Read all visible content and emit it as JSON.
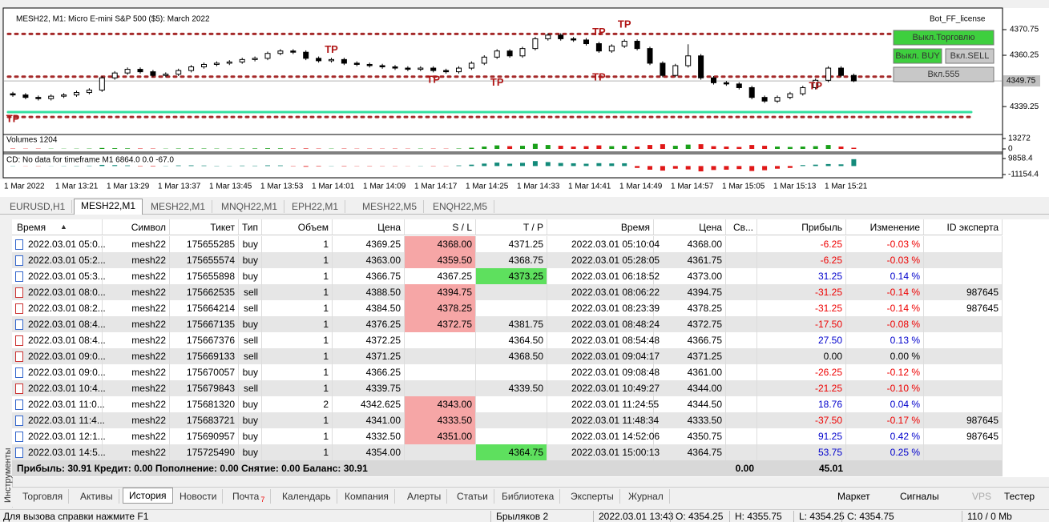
{
  "chart_data": {
    "type": "candlestick",
    "title": "MESH22, M1:  Micro E-mini S&P 500 ($5): March 2022",
    "license": "Bot_FF_license",
    "candles": [
      [
        4344.5,
        4345.25,
        4343.25,
        4344
      ],
      [
        4344,
        4344.75,
        4342.25,
        4343
      ],
      [
        4343,
        4343.75,
        4341.75,
        4342.5
      ],
      [
        4342.5,
        4344.25,
        4341.75,
        4343.5
      ],
      [
        4343.5,
        4344.75,
        4342.75,
        4344
      ],
      [
        4344,
        4345.75,
        4343.25,
        4345
      ],
      [
        4345,
        4346.75,
        4344.25,
        4346
      ],
      [
        4346,
        4351.75,
        4345.25,
        4351
      ],
      [
        4351,
        4353.75,
        4350.25,
        4353
      ],
      [
        4353,
        4355.25,
        4352.25,
        4354.5
      ],
      [
        4354.5,
        4355.25,
        4352.75,
        4353.5
      ],
      [
        4353.5,
        4354.25,
        4351.25,
        4352
      ],
      [
        4352,
        4353.25,
        4351.25,
        4352.5
      ],
      [
        4352.5,
        4354.75,
        4351.75,
        4354
      ],
      [
        4354,
        4356.25,
        4353.25,
        4355.5
      ],
      [
        4355.5,
        4357.25,
        4354.75,
        4356.5
      ],
      [
        4356.5,
        4357.75,
        4355.75,
        4357
      ],
      [
        4357,
        4358.25,
        4356.25,
        4357.5
      ],
      [
        4357.5,
        4359.25,
        4356.75,
        4358.5
      ],
      [
        4358.5,
        4359.75,
        4357.75,
        4359
      ],
      [
        4359,
        4361.75,
        4358.25,
        4361
      ],
      [
        4361,
        4362.75,
        4360.25,
        4362
      ],
      [
        4362,
        4362.75,
        4360.75,
        4361.5
      ],
      [
        4361.5,
        4362.25,
        4358.25,
        4359
      ],
      [
        4359,
        4359.75,
        4357.25,
        4358
      ],
      [
        4358,
        4359.25,
        4357.25,
        4358.5
      ],
      [
        4358.5,
        4359.25,
        4356.25,
        4357
      ],
      [
        4357,
        4357.75,
        4355.75,
        4356.5
      ],
      [
        4356.5,
        4357.25,
        4355.25,
        4356
      ],
      [
        4356,
        4356.75,
        4354.75,
        4355.5
      ],
      [
        4355.5,
        4356.25,
        4354.25,
        4355
      ],
      [
        4355,
        4355.75,
        4353.75,
        4354.5
      ],
      [
        4354.5,
        4355.75,
        4353.75,
        4355
      ],
      [
        4355,
        4355.75,
        4353.25,
        4354
      ],
      [
        4354,
        4354.75,
        4352.75,
        4353.5
      ],
      [
        4353.5,
        4355.75,
        4352.75,
        4355
      ],
      [
        4355,
        4357.75,
        4354.25,
        4357
      ],
      [
        4357,
        4360.25,
        4356.25,
        4359.5
      ],
      [
        4359.5,
        4362.75,
        4358.75,
        4362
      ],
      [
        4362,
        4362.75,
        4359.25,
        4360
      ],
      [
        4360,
        4363.75,
        4359.25,
        4363
      ],
      [
        4363,
        4367.75,
        4362.25,
        4367
      ],
      [
        4367,
        4369.25,
        4366.25,
        4368.5
      ],
      [
        4368.5,
        4369.25,
        4366.25,
        4367
      ],
      [
        4367,
        4367.75,
        4365.75,
        4366.5
      ],
      [
        4366.5,
        4367.25,
        4364.25,
        4365
      ],
      [
        4365,
        4365.75,
        4361.25,
        4362
      ],
      [
        4362,
        4364.75,
        4361.25,
        4364
      ],
      [
        4364,
        4366.75,
        4363.25,
        4366
      ],
      [
        4366,
        4366.75,
        4362.25,
        4363
      ],
      [
        4363,
        4363.75,
        4356.25,
        4357
      ],
      [
        4357,
        4357.75,
        4351.25,
        4352
      ],
      [
        4352,
        4356.75,
        4351.25,
        4356
      ],
      [
        4356,
        4364.75,
        4355.25,
        4360
      ],
      [
        4360,
        4360.75,
        4350.25,
        4351
      ],
      [
        4351,
        4351.75,
        4348.25,
        4349
      ],
      [
        4349,
        4349.75,
        4347.75,
        4348.5
      ],
      [
        4348.5,
        4349.25,
        4346.25,
        4347
      ],
      [
        4347,
        4347.75,
        4342.25,
        4343
      ],
      [
        4343,
        4343.75,
        4340.75,
        4341.5
      ],
      [
        4341.5,
        4343.75,
        4340.75,
        4343
      ],
      [
        4343,
        4345.25,
        4342.25,
        4344.5
      ],
      [
        4344.5,
        4347.75,
        4343.75,
        4347
      ],
      [
        4347,
        4350.75,
        4346.25,
        4350
      ],
      [
        4350,
        4355.75,
        4349.25,
        4355
      ],
      [
        4355,
        4355.75,
        4351.25,
        4352
      ],
      [
        4352,
        4352.75,
        4349.25,
        4349.75
      ]
    ],
    "up_color": "#000000",
    "down_color": "#000000",
    "ylim": [
      4328.8,
      4377.3
    ],
    "yticks": [
      4339.25,
      4360.25,
      4370.75
    ],
    "current_price": 4349.75,
    "x_labels": [
      "1 Mar 2022",
      "1 Mar 13:21",
      "1 Mar 13:29",
      "1 Mar 13:37",
      "1 Mar 13:45",
      "1 Mar 13:53",
      "1 Mar 14:01",
      "1 Mar 14:09",
      "1 Mar 14:17",
      "1 Mar 14:25",
      "1 Mar 14:33",
      "1 Mar 14:41",
      "1 Mar 14:49",
      "1 Mar 14:57",
      "1 Mar 15:05",
      "1 Mar 15:13",
      "1 Mar 15:21"
    ],
    "levels": [
      {
        "value": 4337,
        "color": "#35e0a0",
        "style": "solid"
      },
      {
        "value": 4369,
        "color": "#a52a2a",
        "style": "dotted"
      },
      {
        "value": 4351.5,
        "color": "#a52a2a",
        "style": "dotted"
      },
      {
        "value": 4335,
        "color": "#a52a2a",
        "style": "dotted"
      }
    ],
    "tp_markers": [
      {
        "label": "TP",
        "index": 0,
        "value": 4334
      },
      {
        "label": "TP",
        "index": 25,
        "value": 4362.3
      },
      {
        "label": "TP",
        "index": 33,
        "value": 4350
      },
      {
        "label": "TP",
        "index": 38,
        "value": 4349
      },
      {
        "label": "TP",
        "index": 46,
        "value": 4369.5
      },
      {
        "label": "TP",
        "index": 46,
        "value": 4351
      },
      {
        "label": "TP",
        "index": 48,
        "value": 4372.7
      },
      {
        "label": "TP",
        "index": 63,
        "value": 4347.5
      }
    ],
    "buttons": [
      {
        "label": "Выкл.Торговлю",
        "color": "#3ecf3e"
      },
      {
        "label": "Выкл. BUY",
        "color": "#3ecf3e"
      },
      {
        "label": "Вкл.SELL",
        "color": "#c8c8c8"
      },
      {
        "label": "Вкл.555",
        "color": "#c8c8c8"
      }
    ],
    "volume": {
      "title": "Volumes 1204",
      "values": [
        400,
        300,
        350,
        300,
        250,
        300,
        400,
        1200,
        900,
        700,
        500,
        400,
        300,
        500,
        600,
        500,
        400,
        350,
        500,
        600,
        800,
        700,
        500,
        600,
        400,
        350,
        400,
        300,
        350,
        300,
        350,
        300,
        400,
        350,
        300,
        500,
        1500,
        3000,
        4500,
        3500,
        4000,
        6500,
        5000,
        4000,
        3000,
        3500,
        4500,
        3500,
        4000,
        3000,
        5000,
        6000,
        4000,
        5500,
        6000,
        3500,
        3000,
        2500,
        5000,
        4000,
        3000,
        2500,
        3000,
        3500,
        5000,
        3000,
        1500
      ],
      "ylim": [
        0,
        13272
      ],
      "yticks": [
        13272,
        0
      ],
      "up_color": "#1aa01a",
      "down_color": "#e01818"
    },
    "cd": {
      "title": "CD: No data for timeframe M1 6864.0 0.0 -67.0",
      "values": [
        300,
        -200,
        -300,
        200,
        300,
        400,
        500,
        1500,
        1200,
        800,
        -500,
        -600,
        300,
        800,
        900,
        700,
        400,
        300,
        600,
        500,
        900,
        800,
        -400,
        -900,
        -600,
        300,
        -500,
        -300,
        -400,
        -300,
        -300,
        -200,
        300,
        -400,
        -300,
        800,
        1800,
        3200,
        4500,
        3000,
        4200,
        6500,
        5200,
        4000,
        3600,
        3000,
        3800,
        3400,
        3600,
        -2500,
        -4800,
        -6000,
        -3500,
        -4500,
        -7000,
        -5200,
        -4800,
        -4000,
        -6500,
        -5500,
        -3500,
        -2500,
        1200,
        1800,
        2600,
        2200,
        9000
      ],
      "ylim": [
        -11154.4,
        9858.4
      ],
      "yticks": [
        9858.4,
        -11154.4
      ],
      "up_color": "#138a7a",
      "down_color": "#e01818"
    }
  },
  "chart_tabs": [
    "EURUSD,H1",
    "MESH22,M1",
    "MESH22,M1",
    "MNQH22,M1",
    "EPH22,M1",
    "MESH22,M5",
    "ENQH22,M5"
  ],
  "side_label": "Инструменты",
  "table": {
    "headers": [
      "Время",
      "Символ",
      "Тикет",
      "Тип",
      "Объем",
      "Цена",
      "S / L",
      "T / P",
      "Время",
      "Цена",
      "Св...",
      "Прибыль",
      "Изменение",
      "ID эксперта"
    ],
    "rows": [
      [
        "2022.03.01 05:0...",
        "mesh22",
        "175655285",
        "buy",
        "1",
        "4369.25",
        "4368.00",
        "4371.25",
        "2022.03.01 05:10:04",
        "4368.00",
        "",
        "-6.25",
        "-0.03 %",
        ""
      ],
      [
        "2022.03.01 05:2...",
        "mesh22",
        "175655574",
        "buy",
        "1",
        "4363.00",
        "4359.50",
        "4368.75",
        "2022.03.01 05:28:05",
        "4361.75",
        "",
        "-6.25",
        "-0.03 %",
        ""
      ],
      [
        "2022.03.01 05:3...",
        "mesh22",
        "175655898",
        "buy",
        "1",
        "4366.75",
        "4367.25",
        "4373.25",
        "2022.03.01 06:18:52",
        "4373.00",
        "",
        "31.25",
        "0.14 %",
        ""
      ],
      [
        "2022.03.01 08:0...",
        "mesh22",
        "175662535",
        "sell",
        "1",
        "4388.50",
        "4394.75",
        "",
        "2022.03.01 08:06:22",
        "4394.75",
        "",
        "-31.25",
        "-0.14 %",
        "987645"
      ],
      [
        "2022.03.01 08:2...",
        "mesh22",
        "175664214",
        "sell",
        "1",
        "4384.50",
        "4378.25",
        "",
        "2022.03.01 08:23:39",
        "4378.25",
        "",
        "-31.25",
        "-0.14 %",
        "987645"
      ],
      [
        "2022.03.01 08:4...",
        "mesh22",
        "175667135",
        "buy",
        "1",
        "4376.25",
        "4372.75",
        "4381.75",
        "2022.03.01 08:48:24",
        "4372.75",
        "",
        "-17.50",
        "-0.08 %",
        ""
      ],
      [
        "2022.03.01 08:4...",
        "mesh22",
        "175667376",
        "sell",
        "1",
        "4372.25",
        "",
        "4364.50",
        "2022.03.01 08:54:48",
        "4366.75",
        "",
        "27.50",
        "0.13 %",
        ""
      ],
      [
        "2022.03.01 09:0...",
        "mesh22",
        "175669133",
        "sell",
        "1",
        "4371.25",
        "",
        "4368.50",
        "2022.03.01 09:04:17",
        "4371.25",
        "",
        "0.00",
        "0.00 %",
        ""
      ],
      [
        "2022.03.01 09:0...",
        "mesh22",
        "175670057",
        "buy",
        "1",
        "4366.25",
        "",
        "",
        "2022.03.01 09:08:48",
        "4361.00",
        "",
        "-26.25",
        "-0.12 %",
        ""
      ],
      [
        "2022.03.01 10:4...",
        "mesh22",
        "175679843",
        "sell",
        "1",
        "4339.75",
        "",
        "4339.50",
        "2022.03.01 10:49:27",
        "4344.00",
        "",
        "-21.25",
        "-0.10 %",
        ""
      ],
      [
        "2022.03.01 11:0...",
        "mesh22",
        "175681320",
        "buy",
        "2",
        "4342.625",
        "4343.00",
        "",
        "2022.03.01 11:24:55",
        "4344.50",
        "",
        "18.76",
        "0.04 %",
        ""
      ],
      [
        "2022.03.01 11:4...",
        "mesh22",
        "175683721",
        "buy",
        "1",
        "4341.00",
        "4333.50",
        "",
        "2022.03.01 11:48:34",
        "4333.50",
        "",
        "-37.50",
        "-0.17 %",
        "987645"
      ],
      [
        "2022.03.01 12:1...",
        "mesh22",
        "175690957",
        "buy",
        "1",
        "4332.50",
        "4351.00",
        "",
        "2022.03.01 14:52:06",
        "4350.75",
        "",
        "91.25",
        "0.42 %",
        "987645"
      ],
      [
        "2022.03.01 14:5...",
        "mesh22",
        "175725490",
        "buy",
        "1",
        "4354.00",
        "",
        "4364.75",
        "2022.03.01 15:00:13",
        "4364.75",
        "",
        "53.75",
        "0.25 %",
        ""
      ]
    ],
    "highlights": [
      [
        0,
        6,
        "#f6a6a6"
      ],
      [
        1,
        6,
        "#f6a6a6"
      ],
      [
        2,
        7,
        "#5ee05e"
      ],
      [
        3,
        6,
        "#f6a6a6"
      ],
      [
        4,
        6,
        "#f6a6a6"
      ],
      [
        5,
        6,
        "#f6a6a6"
      ],
      [
        10,
        6,
        "#f6a6a6"
      ],
      [
        11,
        6,
        "#f6a6a6"
      ],
      [
        12,
        6,
        "#f6a6a6"
      ],
      [
        13,
        7,
        "#5ee05e"
      ]
    ],
    "summary": "Прибыль: 30.91  Кредит: 0.00  Пополнение: 0.00  Снятие: 0.00  Баланс: 30.91",
    "summary_swap": "0.00",
    "summary_profit": "45.01"
  },
  "bottom_tabs": [
    "Торговля",
    "Активы",
    "История",
    "Новости",
    "Почта",
    "Календарь",
    "Компания",
    "Алерты",
    "Статьи",
    "Библиотека",
    "Эксперты",
    "Журнал"
  ],
  "mail_badge": "7",
  "right_tabs": [
    "Маркет",
    "Сигналы",
    "VPS",
    "Тестер"
  ],
  "status": [
    "Для вызова справки нажмите F1",
    "Брыляков 2",
    "2022.03.01 13:43",
    "O: 4354.25",
    "H: 4355.75",
    "L: 4354.25",
    "C: 4354.75",
    "110 / 0 Mb"
  ]
}
